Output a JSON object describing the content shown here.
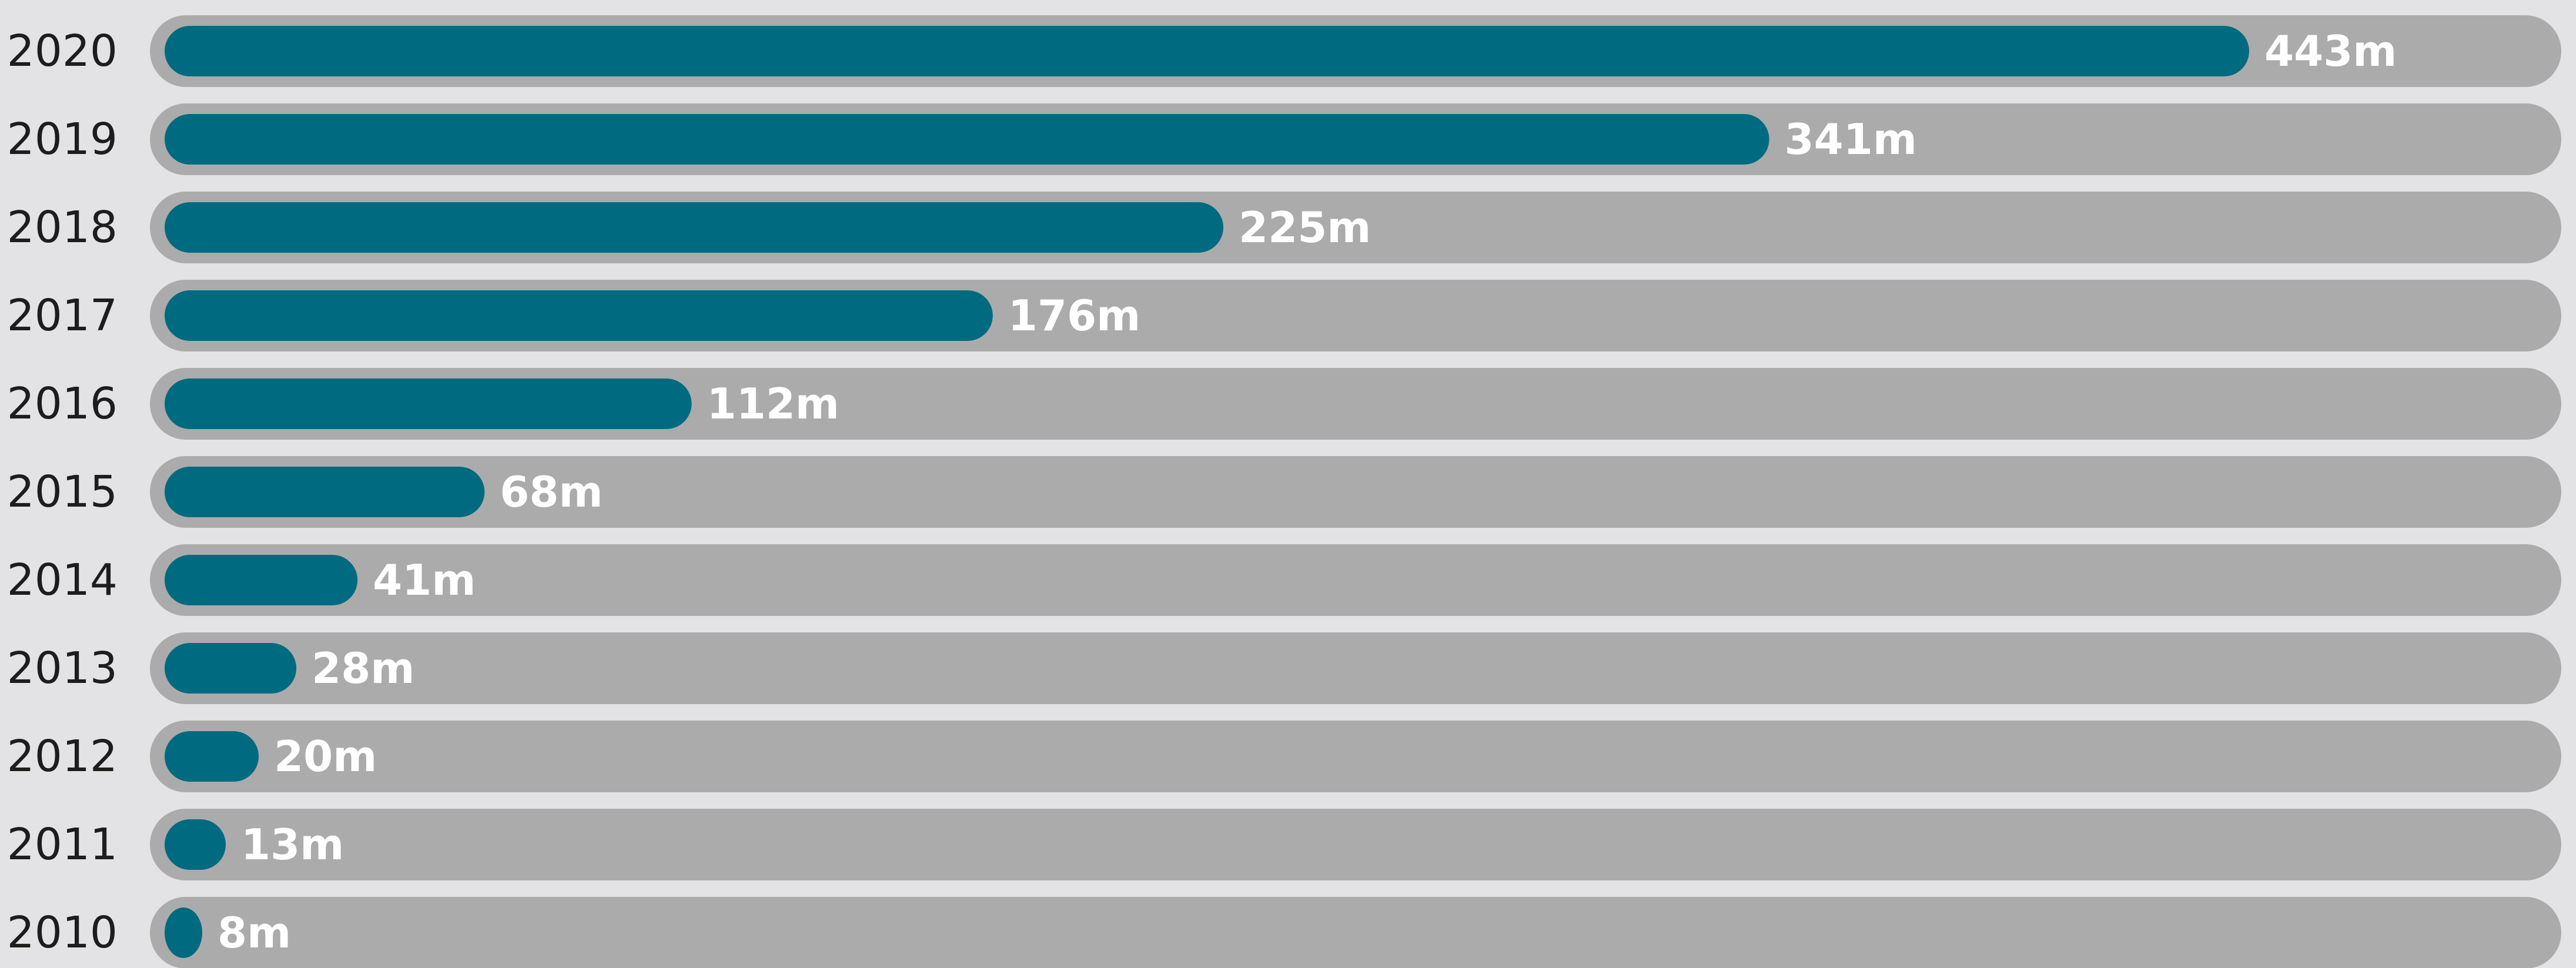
{
  "chart_data": {
    "type": "bar",
    "orientation": "horizontal",
    "categories": [
      "2020",
      "2019",
      "2018",
      "2017",
      "2016",
      "2015",
      "2014",
      "2013",
      "2012",
      "2011",
      "2010"
    ],
    "values": [
      443,
      341,
      225,
      176,
      112,
      68,
      41,
      28,
      20,
      13,
      8
    ],
    "value_labels": [
      "443m",
      "341m",
      "225m",
      "176m",
      "112m",
      "68m",
      "41m",
      "28m",
      "20m",
      "13m",
      "8m"
    ],
    "xlim": [
      0,
      500
    ],
    "title": "",
    "xlabel": "",
    "ylabel": "",
    "grid": false,
    "legend": "none",
    "colors": {
      "bar": "#006b80",
      "track": "#ababab",
      "background": "#e3e3e5",
      "value_label": "#ffffff",
      "category_label": "#1d1d1d"
    }
  }
}
